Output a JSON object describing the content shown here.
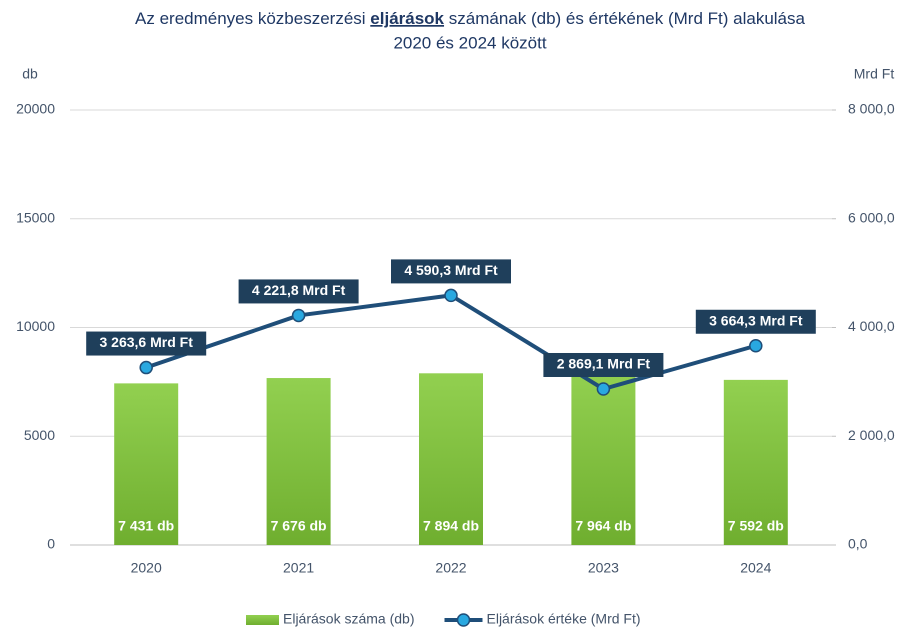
{
  "chart_data": {
    "type": "bar_line",
    "title": {
      "line1": [
        "Az eredményes közbeszerzési",
        "eljárások",
        "számának (db) és értékének (Mrd Ft) alakulása"
      ],
      "line2": "2020 és 2024 között"
    },
    "y_label": "db",
    "y2_label": "Mrd Ft",
    "categories": [
      "2020",
      "2021",
      "2022",
      "2023",
      "2024"
    ],
    "series": [
      {
        "name": "Eljárások száma (db)",
        "type": "bar",
        "color": "#8cc63f",
        "values": [
          7431,
          7676,
          7894,
          7964,
          7592
        ],
        "value_labels": [
          "7 431 db",
          "7 676 db",
          "7 894 db",
          "7 964 db",
          "7 592 db"
        ]
      },
      {
        "name": "Eljárások értéke (Mrd Ft)",
        "type": "line",
        "axis": "y2",
        "color": "#1f4e79",
        "marker_color": "#29a8e0",
        "values": [
          3263.6,
          4221.8,
          4590.3,
          2869.1,
          3664.3
        ],
        "value_labels": [
          "3 263,6 Mrd Ft",
          "4 221,8 Mrd Ft",
          "4 590,3 Mrd Ft",
          "2 869,1 Mrd Ft",
          "3 664,3 Mrd Ft"
        ]
      }
    ],
    "ylim": [
      0,
      20000
    ],
    "yticks": [
      0,
      5000,
      10000,
      15000,
      20000
    ],
    "y2lim": [
      0,
      8000
    ],
    "y2ticks": [
      {
        "value": 0,
        "label": "0,0"
      },
      {
        "value": 2000,
        "label": "2 000,0"
      },
      {
        "value": 4000,
        "label": "4 000,0"
      },
      {
        "value": 6000,
        "label": "6 000,0"
      },
      {
        "value": 8000,
        "label": "8 000,0"
      }
    ],
    "grid": true,
    "legend": "bottom"
  }
}
